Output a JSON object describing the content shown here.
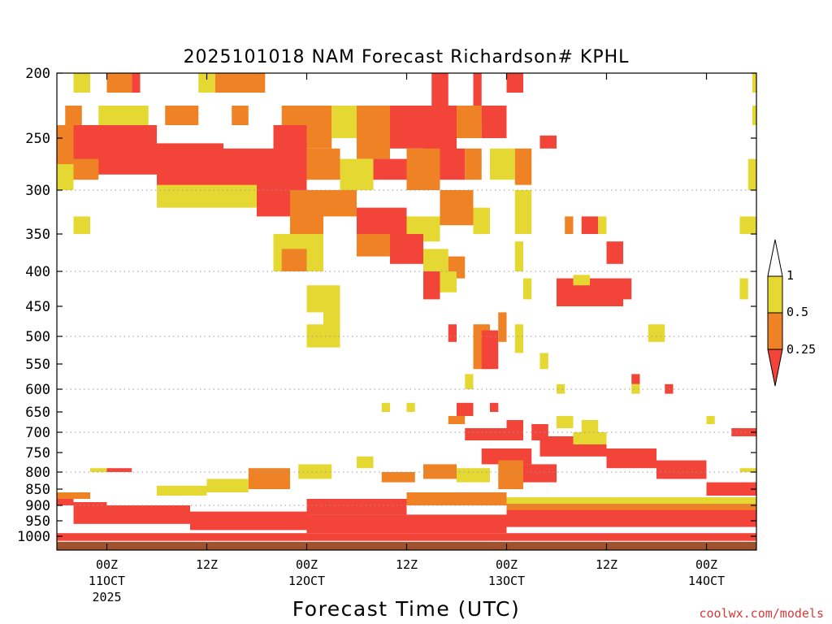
{
  "chart_data": {
    "type": "heatmap",
    "title": "2025101018 NAM Forecast Richardson# KPHL",
    "xlabel": "Forecast Time (UTC)",
    "ylabel": "",
    "y_axis_scale": "pressure (hPa), inverted, log-like",
    "ylim": [
      1030,
      200
    ],
    "xlim_hours_label": "forecast valid time",
    "y_ticks": [
      200,
      250,
      300,
      350,
      400,
      450,
      500,
      550,
      600,
      650,
      700,
      750,
      800,
      850,
      900,
      950,
      1000
    ],
    "gridlines_dotted_at": [
      300,
      400,
      500,
      600,
      700,
      800,
      900
    ],
    "x_ticks": [
      {
        "label": "00Z",
        "sub1": "11OCT",
        "sub2": "2025"
      },
      {
        "label": "12Z",
        "sub1": "",
        "sub2": ""
      },
      {
        "label": "00Z",
        "sub1": "12OCT",
        "sub2": ""
      },
      {
        "label": "12Z",
        "sub1": "",
        "sub2": ""
      },
      {
        "label": "00Z",
        "sub1": "13OCT",
        "sub2": ""
      },
      {
        "label": "12Z",
        "sub1": "",
        "sub2": ""
      },
      {
        "label": "00Z",
        "sub1": "14OCT",
        "sub2": ""
      }
    ],
    "x_ticks_hours": [
      0,
      12,
      24,
      36,
      48,
      60,
      72
    ],
    "x_range_hours": [
      -6,
      78
    ],
    "legend": {
      "placement": "right",
      "levels": [
        "1",
        "0.5",
        "0.25"
      ],
      "colors": {
        "above_1": "#ffffff",
        "0.5_to_1": "#e6d832",
        "0.25_to_0.5": "#ef8224",
        "below_0.25": "#f24438"
      }
    },
    "ground_color": "#a0522d",
    "cells": [
      {
        "t": [
          -4,
          -2
        ],
        "p": [
          200,
          215
        ],
        "c": "y"
      },
      {
        "t": [
          0,
          3
        ],
        "p": [
          200,
          215
        ],
        "c": "o"
      },
      {
        "t": [
          3,
          4
        ],
        "p": [
          200,
          215
        ],
        "c": "r"
      },
      {
        "t": [
          13,
          19
        ],
        "p": [
          200,
          215
        ],
        "c": "o"
      },
      {
        "t": [
          11,
          13
        ],
        "p": [
          200,
          215
        ],
        "c": "y"
      },
      {
        "t": [
          39,
          41
        ],
        "p": [
          200,
          225
        ],
        "c": "r"
      },
      {
        "t": [
          44,
          45
        ],
        "p": [
          200,
          240
        ],
        "c": "r"
      },
      {
        "t": [
          48,
          50
        ],
        "p": [
          200,
          215
        ],
        "c": "r"
      },
      {
        "t": [
          77.5,
          78
        ],
        "p": [
          200,
          215
        ],
        "c": "y"
      },
      {
        "t": [
          -5,
          -3
        ],
        "p": [
          225,
          250
        ],
        "c": "o"
      },
      {
        "t": [
          -1,
          2
        ],
        "p": [
          225,
          240
        ],
        "c": "y"
      },
      {
        "t": [
          2,
          5
        ],
        "p": [
          225,
          240
        ],
        "c": "y"
      },
      {
        "t": [
          7,
          11
        ],
        "p": [
          225,
          240
        ],
        "c": "o"
      },
      {
        "t": [
          15,
          17
        ],
        "p": [
          225,
          240
        ],
        "c": "o"
      },
      {
        "t": [
          21,
          27
        ],
        "p": [
          225,
          260
        ],
        "c": "o"
      },
      {
        "t": [
          27,
          30
        ],
        "p": [
          225,
          250
        ],
        "c": "y"
      },
      {
        "t": [
          30,
          34
        ],
        "p": [
          225,
          270
        ],
        "c": "o"
      },
      {
        "t": [
          34,
          38
        ],
        "p": [
          225,
          260
        ],
        "c": "r"
      },
      {
        "t": [
          38,
          42
        ],
        "p": [
          225,
          270
        ],
        "c": "r"
      },
      {
        "t": [
          42,
          45
        ],
        "p": [
          225,
          250
        ],
        "c": "o"
      },
      {
        "t": [
          45,
          48
        ],
        "p": [
          225,
          250
        ],
        "c": "r"
      },
      {
        "t": [
          77.5,
          78
        ],
        "p": [
          225,
          240
        ],
        "c": "y"
      },
      {
        "t": [
          -6,
          -4
        ],
        "p": [
          240,
          275
        ],
        "c": "o"
      },
      {
        "t": [
          -4,
          6
        ],
        "p": [
          240,
          285
        ],
        "c": "r"
      },
      {
        "t": [
          6,
          14
        ],
        "p": [
          255,
          300
        ],
        "c": "r"
      },
      {
        "t": [
          14,
          20
        ],
        "p": [
          260,
          300
        ],
        "c": "r"
      },
      {
        "t": [
          20,
          24
        ],
        "p": [
          240,
          300
        ],
        "c": "r"
      },
      {
        "t": [
          24,
          28
        ],
        "p": [
          260,
          290
        ],
        "c": "o"
      },
      {
        "t": [
          28,
          32
        ],
        "p": [
          270,
          300
        ],
        "c": "y"
      },
      {
        "t": [
          32,
          36
        ],
        "p": [
          270,
          290
        ],
        "c": "r"
      },
      {
        "t": [
          36,
          40
        ],
        "p": [
          260,
          300
        ],
        "c": "o"
      },
      {
        "t": [
          40,
          43
        ],
        "p": [
          260,
          290
        ],
        "c": "r"
      },
      {
        "t": [
          43,
          45
        ],
        "p": [
          260,
          290
        ],
        "c": "o"
      },
      {
        "t": [
          46,
          49
        ],
        "p": [
          260,
          290
        ],
        "c": "y"
      },
      {
        "t": [
          49,
          51
        ],
        "p": [
          260,
          295
        ],
        "c": "o"
      },
      {
        "t": [
          52,
          54
        ],
        "p": [
          248,
          260
        ],
        "c": "r"
      },
      {
        "t": [
          77,
          78
        ],
        "p": [
          270,
          300
        ],
        "c": "y"
      },
      {
        "t": [
          -4,
          -1
        ],
        "p": [
          270,
          290
        ],
        "c": "o"
      },
      {
        "t": [
          -6,
          -4
        ],
        "p": [
          275,
          300
        ],
        "c": "y"
      },
      {
        "t": [
          6,
          18
        ],
        "p": [
          295,
          320
        ],
        "c": "y"
      },
      {
        "t": [
          18,
          22
        ],
        "p": [
          300,
          330
        ],
        "c": "r"
      },
      {
        "t": [
          22,
          26
        ],
        "p": [
          300,
          360
        ],
        "c": "o"
      },
      {
        "t": [
          26,
          30
        ],
        "p": [
          300,
          330
        ],
        "c": "o"
      },
      {
        "t": [
          30,
          36
        ],
        "p": [
          320,
          350
        ],
        "c": "r"
      },
      {
        "t": [
          36,
          40
        ],
        "p": [
          330,
          360
        ],
        "c": "y"
      },
      {
        "t": [
          40,
          44
        ],
        "p": [
          300,
          340
        ],
        "c": "o"
      },
      {
        "t": [
          44,
          46
        ],
        "p": [
          320,
          350
        ],
        "c": "y"
      },
      {
        "t": [
          49,
          51
        ],
        "p": [
          300,
          350
        ],
        "c": "y"
      },
      {
        "t": [
          -4,
          -2
        ],
        "p": [
          330,
          350
        ],
        "c": "y"
      },
      {
        "t": [
          55,
          56
        ],
        "p": [
          330,
          350
        ],
        "c": "o"
      },
      {
        "t": [
          57,
          59
        ],
        "p": [
          330,
          350
        ],
        "c": "r"
      },
      {
        "t": [
          59,
          60
        ],
        "p": [
          330,
          350
        ],
        "c": "y"
      },
      {
        "t": [
          76,
          78
        ],
        "p": [
          330,
          350
        ],
        "c": "y"
      },
      {
        "t": [
          20,
          26
        ],
        "p": [
          350,
          400
        ],
        "c": "y"
      },
      {
        "t": [
          21,
          24
        ],
        "p": [
          370,
          400
        ],
        "c": "o"
      },
      {
        "t": [
          30,
          34
        ],
        "p": [
          350,
          380
        ],
        "c": "o"
      },
      {
        "t": [
          34,
          38
        ],
        "p": [
          350,
          390
        ],
        "c": "r"
      },
      {
        "t": [
          38,
          41
        ],
        "p": [
          370,
          400
        ],
        "c": "y"
      },
      {
        "t": [
          41,
          43
        ],
        "p": [
          380,
          410
        ],
        "c": "o"
      },
      {
        "t": [
          49,
          50
        ],
        "p": [
          360,
          400
        ],
        "c": "y"
      },
      {
        "t": [
          60,
          62
        ],
        "p": [
          360,
          390
        ],
        "c": "r"
      },
      {
        "t": [
          24,
          28
        ],
        "p": [
          420,
          460
        ],
        "c": "y"
      },
      {
        "t": [
          38,
          40
        ],
        "p": [
          400,
          440
        ],
        "c": "r"
      },
      {
        "t": [
          40,
          42
        ],
        "p": [
          400,
          430
        ],
        "c": "y"
      },
      {
        "t": [
          54,
          62
        ],
        "p": [
          410,
          450
        ],
        "c": "r"
      },
      {
        "t": [
          56,
          58
        ],
        "p": [
          405,
          420
        ],
        "c": "y"
      },
      {
        "t": [
          62,
          63
        ],
        "p": [
          410,
          440
        ],
        "c": "r"
      },
      {
        "t": [
          76,
          77
        ],
        "p": [
          410,
          440
        ],
        "c": "y"
      },
      {
        "t": [
          50,
          51
        ],
        "p": [
          410,
          440
        ],
        "c": "y"
      },
      {
        "t": [
          24,
          28
        ],
        "p": [
          480,
          520
        ],
        "c": "y"
      },
      {
        "t": [
          26,
          28
        ],
        "p": [
          460,
          490
        ],
        "c": "y"
      },
      {
        "t": [
          41,
          42
        ],
        "p": [
          480,
          510
        ],
        "c": "r"
      },
      {
        "t": [
          44,
          46
        ],
        "p": [
          480,
          560
        ],
        "c": "o"
      },
      {
        "t": [
          45,
          47
        ],
        "p": [
          490,
          560
        ],
        "c": "r"
      },
      {
        "t": [
          47,
          48
        ],
        "p": [
          460,
          510
        ],
        "c": "o"
      },
      {
        "t": [
          49,
          50
        ],
        "p": [
          480,
          530
        ],
        "c": "y"
      },
      {
        "t": [
          52,
          53
        ],
        "p": [
          530,
          560
        ],
        "c": "y"
      },
      {
        "t": [
          65,
          67
        ],
        "p": [
          480,
          510
        ],
        "c": "y"
      },
      {
        "t": [
          43,
          44
        ],
        "p": [
          570,
          600
        ],
        "c": "y"
      },
      {
        "t": [
          63,
          64
        ],
        "p": [
          570,
          590
        ],
        "c": "r"
      },
      {
        "t": [
          63,
          64
        ],
        "p": [
          590,
          610
        ],
        "c": "y"
      },
      {
        "t": [
          67,
          68
        ],
        "p": [
          590,
          610
        ],
        "c": "r"
      },
      {
        "t": [
          54,
          55
        ],
        "p": [
          590,
          610
        ],
        "c": "y"
      },
      {
        "t": [
          42,
          44
        ],
        "p": [
          630,
          660
        ],
        "c": "r"
      },
      {
        "t": [
          46,
          47
        ],
        "p": [
          630,
          650
        ],
        "c": "r"
      },
      {
        "t": [
          36,
          37
        ],
        "p": [
          630,
          650
        ],
        "c": "y"
      },
      {
        "t": [
          33,
          34
        ],
        "p": [
          630,
          650
        ],
        "c": "y"
      },
      {
        "t": [
          41,
          43
        ],
        "p": [
          660,
          680
        ],
        "c": "o"
      },
      {
        "t": [
          43,
          48
        ],
        "p": [
          690,
          720
        ],
        "c": "r"
      },
      {
        "t": [
          48,
          50
        ],
        "p": [
          670,
          720
        ],
        "c": "r"
      },
      {
        "t": [
          51,
          53
        ],
        "p": [
          680,
          720
        ],
        "c": "r"
      },
      {
        "t": [
          54,
          56
        ],
        "p": [
          660,
          690
        ],
        "c": "y"
      },
      {
        "t": [
          57,
          59
        ],
        "p": [
          670,
          700
        ],
        "c": "y"
      },
      {
        "t": [
          72,
          73
        ],
        "p": [
          660,
          680
        ],
        "c": "y"
      },
      {
        "t": [
          75,
          79
        ],
        "p": [
          690,
          710
        ],
        "c": "r"
      },
      {
        "t": [
          52,
          60
        ],
        "p": [
          710,
          760
        ],
        "c": "r"
      },
      {
        "t": [
          56,
          60
        ],
        "p": [
          700,
          730
        ],
        "c": "y"
      },
      {
        "t": [
          60,
          66
        ],
        "p": [
          740,
          790
        ],
        "c": "r"
      },
      {
        "t": [
          66,
          72
        ],
        "p": [
          770,
          820
        ],
        "c": "r"
      },
      {
        "t": [
          72,
          78
        ],
        "p": [
          830,
          870
        ],
        "c": "r"
      },
      {
        "t": [
          45,
          51
        ],
        "p": [
          740,
          780
        ],
        "c": "r"
      },
      {
        "t": [
          47,
          50
        ],
        "p": [
          770,
          850
        ],
        "c": "o"
      },
      {
        "t": [
          50,
          54
        ],
        "p": [
          780,
          830
        ],
        "c": "r"
      },
      {
        "t": [
          38,
          42
        ],
        "p": [
          780,
          820
        ],
        "c": "o"
      },
      {
        "t": [
          42,
          46
        ],
        "p": [
          790,
          830
        ],
        "c": "y"
      },
      {
        "t": [
          33,
          37
        ],
        "p": [
          800,
          830
        ],
        "c": "o"
      },
      {
        "t": [
          30,
          32
        ],
        "p": [
          760,
          790
        ],
        "c": "y"
      },
      {
        "t": [
          23,
          27
        ],
        "p": [
          780,
          820
        ],
        "c": "y"
      },
      {
        "t": [
          17,
          22
        ],
        "p": [
          790,
          850
        ],
        "c": "o"
      },
      {
        "t": [
          12,
          17
        ],
        "p": [
          820,
          860
        ],
        "c": "y"
      },
      {
        "t": [
          0,
          3
        ],
        "p": [
          790,
          800
        ],
        "c": "r"
      },
      {
        "t": [
          -2,
          0
        ],
        "p": [
          790,
          800
        ],
        "c": "y"
      },
      {
        "t": [
          76,
          79
        ],
        "p": [
          790,
          800
        ],
        "c": "y"
      },
      {
        "t": [
          6,
          12
        ],
        "p": [
          840,
          870
        ],
        "c": "y"
      },
      {
        "t": [
          -6,
          -2
        ],
        "p": [
          860,
          880
        ],
        "c": "o"
      },
      {
        "t": [
          -6,
          -4
        ],
        "p": [
          880,
          900
        ],
        "c": "r"
      },
      {
        "t": [
          -4,
          0
        ],
        "p": [
          890,
          960
        ],
        "c": "r"
      },
      {
        "t": [
          0,
          10
        ],
        "p": [
          900,
          960
        ],
        "c": "r"
      },
      {
        "t": [
          10,
          24
        ],
        "p": [
          920,
          980
        ],
        "c": "r"
      },
      {
        "t": [
          24,
          36
        ],
        "p": [
          880,
          930
        ],
        "c": "r"
      },
      {
        "t": [
          36,
          48
        ],
        "p": [
          860,
          900
        ],
        "c": "o"
      },
      {
        "t": [
          24,
          48
        ],
        "p": [
          930,
          990
        ],
        "c": "r"
      },
      {
        "t": [
          48,
          78
        ],
        "p": [
          910,
          970
        ],
        "c": "r"
      },
      {
        "t": [
          48,
          78
        ],
        "p": [
          890,
          915
        ],
        "c": "o"
      },
      {
        "t": [
          48,
          78
        ],
        "p": [
          875,
          895
        ],
        "c": "y"
      },
      {
        "t": [
          -6,
          78
        ],
        "p": [
          990,
          1010
        ],
        "c": "r"
      }
    ]
  },
  "credit": "coolwx.com/models"
}
